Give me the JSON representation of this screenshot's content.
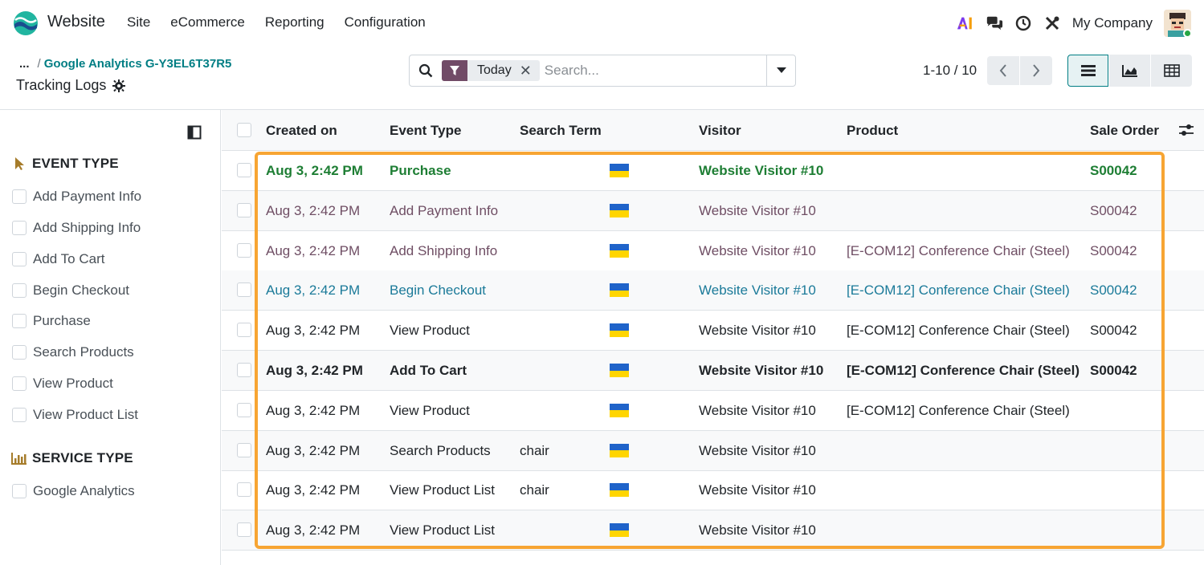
{
  "navbar": {
    "app_name": "Website",
    "menu": [
      "Site",
      "eCommerce",
      "Reporting",
      "Configuration"
    ],
    "company": "My Company"
  },
  "breadcrumb": {
    "ellipsis": "...",
    "separator": "/",
    "parent": "Google Analytics G-Y3EL6T37R5"
  },
  "page_title": "Tracking Logs",
  "search": {
    "facet_label": "Today",
    "placeholder": "Search..."
  },
  "pager": {
    "range": "1-10 / 10"
  },
  "sidebar": {
    "event_type_title": "EVENT TYPE",
    "event_types": [
      "Add Payment Info",
      "Add Shipping Info",
      "Add To Cart",
      "Begin Checkout",
      "Purchase",
      "Search Products",
      "View Product",
      "View Product List"
    ],
    "service_type_title": "SERVICE TYPE",
    "service_types": [
      "Google Analytics"
    ]
  },
  "table": {
    "columns": {
      "created_on": "Created on",
      "event_type": "Event Type",
      "search_term": "Search Term",
      "visitor": "Visitor",
      "product": "Product",
      "sale_order": "Sale Order"
    },
    "rows": [
      {
        "created_on": "Aug 3, 2:42 PM",
        "event_type": "Purchase",
        "search_term": "",
        "visitor": "Website Visitor #10",
        "product": "",
        "sale_order": "S00042",
        "style": "green"
      },
      {
        "created_on": "Aug 3, 2:42 PM",
        "event_type": "Add Payment Info",
        "search_term": "",
        "visitor": "Website Visitor #10",
        "product": "",
        "sale_order": "S00042",
        "style": "muted"
      },
      {
        "created_on": "Aug 3, 2:42 PM",
        "event_type": "Add Shipping Info",
        "search_term": "",
        "visitor": "Website Visitor #10",
        "product": "[E-COM12] Conference Chair (Steel)",
        "sale_order": "S00042",
        "style": "muted"
      },
      {
        "created_on": "Aug 3, 2:42 PM",
        "event_type": "Begin Checkout",
        "search_term": "",
        "visitor": "Website Visitor #10",
        "product": "[E-COM12] Conference Chair (Steel)",
        "sale_order": "S00042",
        "style": "teal"
      },
      {
        "created_on": "Aug 3, 2:42 PM",
        "event_type": "View Product",
        "search_term": "",
        "visitor": "Website Visitor #10",
        "product": "[E-COM12] Conference Chair (Steel)",
        "sale_order": "S00042",
        "style": "normal"
      },
      {
        "created_on": "Aug 3, 2:42 PM",
        "event_type": "Add To Cart",
        "search_term": "",
        "visitor": "Website Visitor #10",
        "product": "[E-COM12] Conference Chair (Steel)",
        "sale_order": "S00042",
        "style": "bold"
      },
      {
        "created_on": "Aug 3, 2:42 PM",
        "event_type": "View Product",
        "search_term": "",
        "visitor": "Website Visitor #10",
        "product": "[E-COM12] Conference Chair (Steel)",
        "sale_order": "",
        "style": "normal"
      },
      {
        "created_on": "Aug 3, 2:42 PM",
        "event_type": "Search Products",
        "search_term": "chair",
        "visitor": "Website Visitor #10",
        "product": "",
        "sale_order": "",
        "style": "normal"
      },
      {
        "created_on": "Aug 3, 2:42 PM",
        "event_type": "View Product List",
        "search_term": "chair",
        "visitor": "Website Visitor #10",
        "product": "",
        "sale_order": "",
        "style": "normal"
      },
      {
        "created_on": "Aug 3, 2:42 PM",
        "event_type": "View Product List",
        "search_term": "",
        "visitor": "Website Visitor #10",
        "product": "",
        "sale_order": "",
        "style": "normal"
      }
    ]
  },
  "colors": {
    "brand": "#714b67",
    "link": "#017e84",
    "highlight": "#f7a533",
    "flag_blue": "#1f63c9",
    "flag_yellow": "#ffd500"
  }
}
